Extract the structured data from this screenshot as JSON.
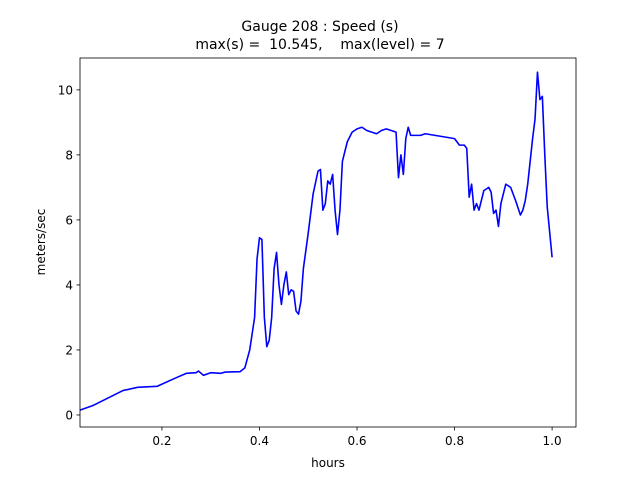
{
  "chart_data": {
    "type": "line",
    "title": [
      "Gauge 208 : Speed (s)",
      "max(s) =  10.545,    max(level) = 7"
    ],
    "xlabel": "hours",
    "ylabel": "meters/sec",
    "xlim": [
      0.032,
      1.049
    ],
    "ylim": [
      -0.37,
      10.98
    ],
    "xticks": [
      0.2,
      0.4,
      0.6,
      0.8,
      {
        "value": 1,
        "label": "1.0"
      }
    ],
    "yticks": [
      0,
      2,
      4,
      6,
      8,
      10
    ],
    "grid": false,
    "series": [
      {
        "name": "speed",
        "color": "#0000ff",
        "x": [
          0.032,
          0.06,
          0.1,
          0.12,
          0.15,
          0.19,
          0.2,
          0.23,
          0.25,
          0.27,
          0.275,
          0.285,
          0.3,
          0.32,
          0.33,
          0.36,
          0.37,
          0.38,
          0.39,
          0.395,
          0.4,
          0.405,
          0.41,
          0.415,
          0.42,
          0.425,
          0.43,
          0.435,
          0.44,
          0.445,
          0.45,
          0.455,
          0.46,
          0.465,
          0.47,
          0.475,
          0.48,
          0.485,
          0.49,
          0.5,
          0.51,
          0.52,
          0.525,
          0.53,
          0.535,
          0.54,
          0.545,
          0.55,
          0.555,
          0.56,
          0.565,
          0.57,
          0.58,
          0.59,
          0.6,
          0.61,
          0.62,
          0.63,
          0.64,
          0.65,
          0.66,
          0.67,
          0.68,
          0.685,
          0.69,
          0.695,
          0.7,
          0.705,
          0.71,
          0.72,
          0.73,
          0.74,
          0.76,
          0.78,
          0.8,
          0.81,
          0.82,
          0.825,
          0.83,
          0.835,
          0.84,
          0.845,
          0.85,
          0.86,
          0.87,
          0.875,
          0.88,
          0.885,
          0.89,
          0.895,
          0.9,
          0.905,
          0.915,
          0.925,
          0.935,
          0.94,
          0.945,
          0.95,
          0.955,
          0.96,
          0.965,
          0.97,
          0.975,
          0.98,
          0.985,
          0.99,
          1.0
        ],
        "values": [
          0.15,
          0.3,
          0.6,
          0.75,
          0.85,
          0.88,
          0.95,
          1.15,
          1.28,
          1.3,
          1.35,
          1.22,
          1.3,
          1.28,
          1.32,
          1.33,
          1.45,
          2.0,
          3.0,
          4.8,
          5.45,
          5.4,
          3.0,
          2.1,
          2.3,
          3.0,
          4.5,
          5.0,
          4.0,
          3.4,
          4.0,
          4.4,
          3.7,
          3.85,
          3.8,
          3.2,
          3.1,
          3.5,
          4.5,
          5.6,
          6.8,
          7.5,
          7.55,
          6.3,
          6.5,
          7.2,
          7.1,
          7.4,
          6.3,
          5.55,
          6.3,
          7.8,
          8.4,
          8.7,
          8.8,
          8.85,
          8.75,
          8.7,
          8.65,
          8.75,
          8.8,
          8.75,
          8.7,
          7.3,
          8.0,
          7.4,
          8.5,
          8.85,
          8.6,
          8.6,
          8.6,
          8.65,
          8.6,
          8.55,
          8.5,
          8.3,
          8.3,
          8.2,
          6.7,
          7.1,
          6.3,
          6.5,
          6.3,
          6.9,
          7.0,
          6.85,
          6.2,
          6.3,
          5.8,
          6.5,
          6.8,
          7.1,
          7.0,
          6.6,
          6.15,
          6.3,
          6.6,
          7.1,
          7.8,
          8.5,
          9.1,
          10.545,
          9.7,
          9.8,
          8.0,
          6.4,
          4.85
        ]
      }
    ]
  }
}
